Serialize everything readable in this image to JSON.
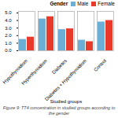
{
  "chart_data": {
    "type": "bar",
    "categories": [
      "Hypothyroidism",
      "Hyperthyroidism",
      "Diabetes",
      "Diabetes + Hypothyroidism",
      "Control"
    ],
    "series": [
      {
        "name": "Male",
        "color": "#6baed6",
        "values": [
          1.5,
          4.2,
          2.8,
          1.4,
          3.8
        ]
      },
      {
        "name": "Female",
        "color": "#e8392a",
        "values": [
          1.8,
          4.5,
          2.9,
          1.2,
          4.0
        ]
      }
    ],
    "xlabel": "Studied groups",
    "legend_title": "Gender",
    "legend": "upper right",
    "caption": "Figure 9: TT4 concentration in studied groups according to the gender",
    "ylim": [
      0,
      5.2
    ],
    "yticks": [
      0,
      1,
      2,
      3,
      4,
      5
    ],
    "grid": false
  }
}
